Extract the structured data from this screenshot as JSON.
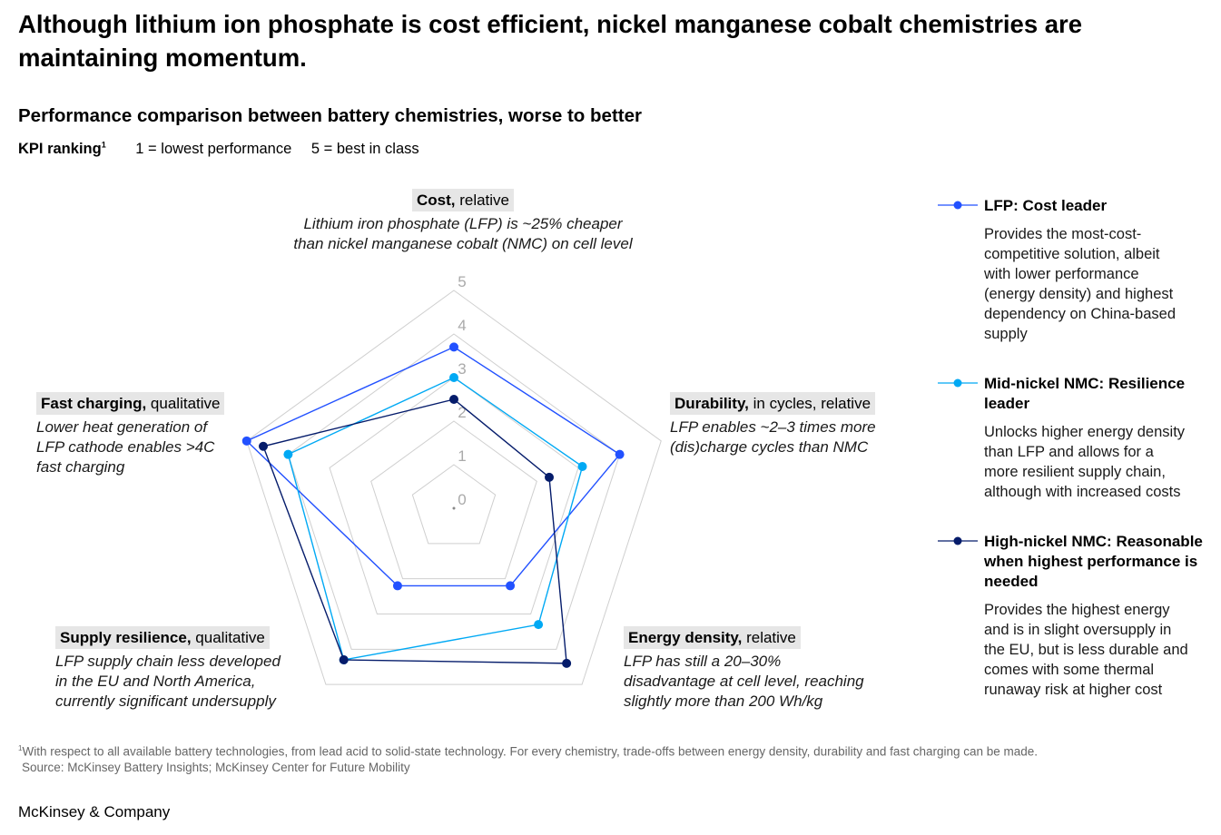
{
  "title": "Although lithium ion phosphate is cost efficient, nickel manganese cobalt chemistries are maintaining momentum.",
  "subtitle": "Performance comparison between battery chemistries, worse to better",
  "kpi": {
    "label": "KPI ranking",
    "footnote_mark": "1",
    "scale_low": "1 = lowest performance",
    "scale_high": "5 = best in class"
  },
  "axes": [
    {
      "key": "cost",
      "name": "Cost,",
      "qualifier": "relative",
      "note": [
        "Lithium iron phosphate (LFP) is ~25% cheaper",
        "than nickel manganese cobalt (NMC) on cell level"
      ]
    },
    {
      "key": "durability",
      "name": "Durability,",
      "qualifier": "in cycles, relative",
      "note": [
        "LFP enables ~2–3 times more",
        "(dis)charge cycles than NMC"
      ]
    },
    {
      "key": "energy",
      "name": "Energy density,",
      "qualifier": "relative",
      "note": [
        "LFP has still a 20–30%",
        "disadvantage at cell level, reaching",
        "slightly more than 200 Wh/kg"
      ]
    },
    {
      "key": "supply",
      "name": "Supply resilience,",
      "qualifier": "qualitative",
      "note": [
        "LFP supply chain less developed",
        "in the EU and North America,",
        "currently significant undersupply"
      ]
    },
    {
      "key": "charging",
      "name": "Fast charging,",
      "qualifier": "qualitative",
      "note": [
        "Lower heat generation of",
        "LFP cathode enables >4C",
        "fast charging"
      ]
    }
  ],
  "legend": [
    {
      "title": "LFP: Cost leader",
      "desc": [
        "Provides the most-cost-",
        "competitive solution, albeit",
        "with lower performance",
        "(energy density) and highest",
        "dependency on China-based",
        "supply"
      ]
    },
    {
      "title": "Mid-nickel NMC: Resilience leader",
      "desc": [
        "Unlocks higher energy density",
        "than LFP and allows for a",
        "more resilient supply chain,",
        "although with increased costs"
      ]
    },
    {
      "title": "High-nickel NMC: Reasonable when highest performance is needed",
      "desc": [
        "Provides the highest energy",
        "and is in slight oversupply in",
        "the EU, but is less durable and",
        "comes with some thermal",
        "runaway risk at higher cost"
      ]
    }
  ],
  "chart_data": {
    "type": "radar",
    "axes": [
      "Cost",
      "Durability",
      "Energy density",
      "Supply resilience",
      "Fast charging"
    ],
    "rlim": [
      0,
      5
    ],
    "ticks": [
      "0",
      "1",
      "2",
      "3",
      "4",
      "5"
    ],
    "series": [
      {
        "name": "LFP: Cost leader",
        "color": "#2251ff",
        "values": [
          3.7,
          4.0,
          2.2,
          2.2,
          5.0
        ]
      },
      {
        "name": "Mid-nickel NMC: Resilience leader",
        "color": "#00a9f4",
        "values": [
          3.0,
          3.1,
          3.3,
          4.3,
          4.0
        ]
      },
      {
        "name": "High-nickel NMC: Reasonable when highest performance is needed",
        "color": "#051c6b",
        "values": [
          2.5,
          2.3,
          4.4,
          4.3,
          4.6
        ]
      }
    ]
  },
  "footnote": {
    "mark": "1",
    "text": "With respect to all available battery technologies, from lead acid to solid-state technology. For every chemistry, trade-offs between energy density, durability and fast charging can be made.",
    "source": "Source: McKinsey Battery Insights; McKinsey Center for Future Mobility"
  },
  "brand": "McKinsey & Company"
}
